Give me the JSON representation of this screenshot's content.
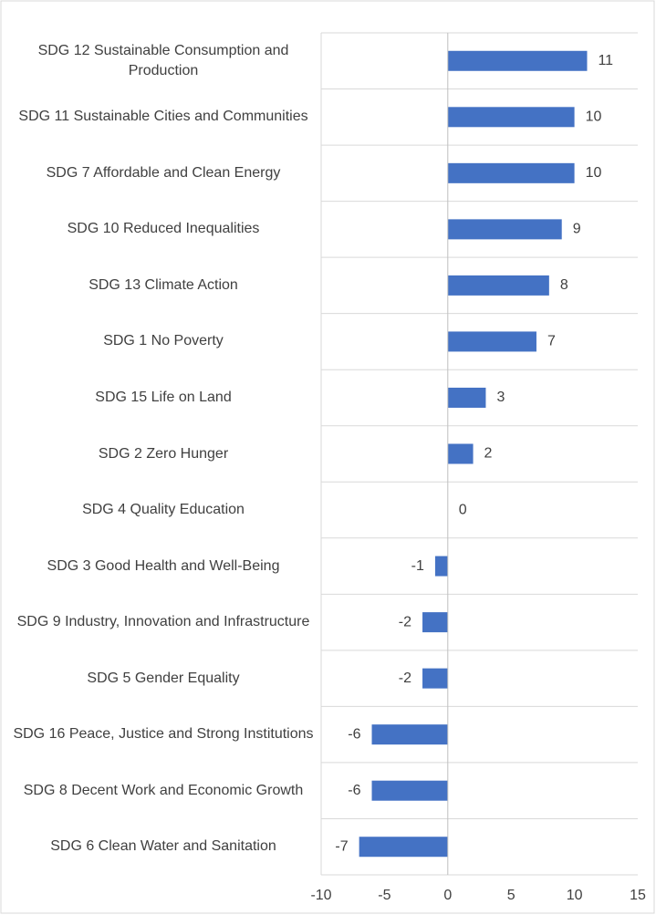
{
  "chart_data": {
    "type": "barh",
    "categories": [
      "SDG 12 Sustainable Consumption and Production",
      "SDG 11 Sustainable Cities and Communities",
      "SDG 7 Affordable and Clean Energy",
      "SDG 10 Reduced Inequalities",
      "SDG 13 Climate Action",
      "SDG 1 No Poverty",
      "SDG 15 Life on Land",
      "SDG 2 Zero Hunger",
      "SDG 4 Quality Education",
      "SDG 3 Good Health and Well-Being",
      "SDG 9 Industry, Innovation and Infrastructure",
      "SDG 5 Gender Equality",
      "SDG 16 Peace, Justice and Strong Institutions",
      "SDG 8 Decent Work and Economic Growth",
      "SDG 6 Clean Water and Sanitation"
    ],
    "values": [
      11,
      10,
      10,
      9,
      8,
      7,
      3,
      2,
      0,
      -1,
      -2,
      -2,
      -6,
      -6,
      -7
    ],
    "color": "#4472c4",
    "xlim": [
      -10,
      15
    ],
    "xticks": [
      -10,
      -5,
      0,
      5,
      10,
      15
    ]
  }
}
